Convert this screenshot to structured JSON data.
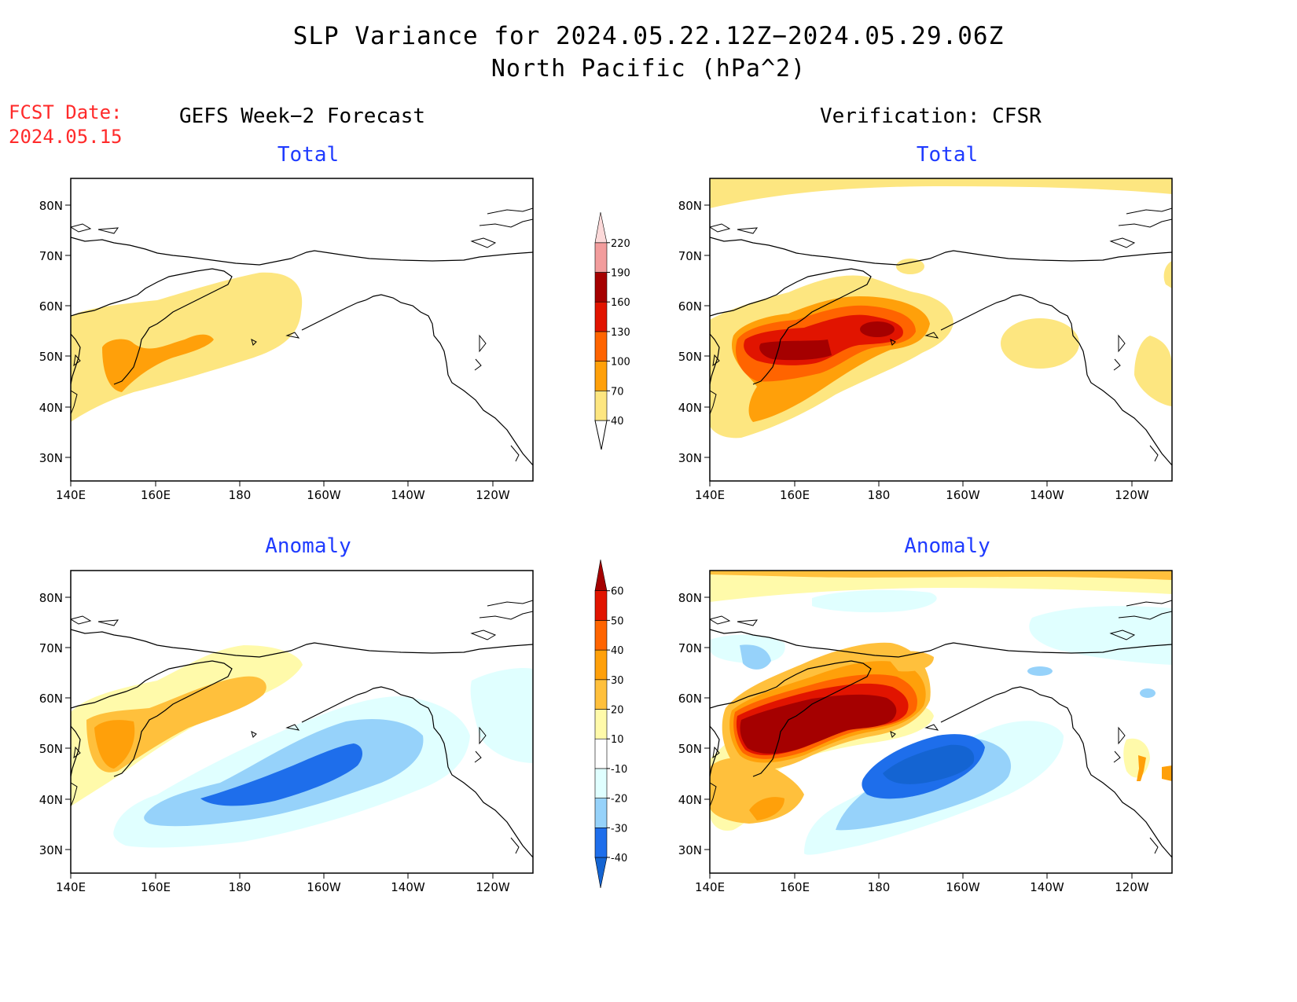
{
  "header": {
    "title_line1": "SLP Variance for 2024.05.22.12Z−2024.05.29.06Z",
    "title_line2": "North Pacific (hPa^2)"
  },
  "fcst_label": {
    "line1": "FCST Date:",
    "line2": "2024.05.15"
  },
  "columns": {
    "left": "GEFS Week−2 Forecast",
    "right": "Verification: CFSR"
  },
  "panels": {
    "gefs_total": {
      "title": "Total"
    },
    "cfsr_total": {
      "title": "Total"
    },
    "gefs_anomaly": {
      "title": "Anomaly"
    },
    "cfsr_anomaly": {
      "title": "Anomaly"
    }
  },
  "axes": {
    "lat_labels": [
      "80N",
      "70N",
      "60N",
      "50N",
      "40N",
      "30N"
    ],
    "lon_labels": [
      "140E",
      "160E",
      "180",
      "160W",
      "140W",
      "120W"
    ]
  },
  "colorbars": {
    "total": {
      "levels": [
        "40",
        "70",
        "100",
        "130",
        "160",
        "190",
        "220"
      ],
      "colors": [
        "#fde680",
        "#ffa00a",
        "#ff6400",
        "#e11400",
        "#a50000",
        "#f29c9c",
        "#fcd9d9"
      ]
    },
    "anomaly": {
      "levels": [
        "-40",
        "-30",
        "-20",
        "-10",
        "10",
        "20",
        "30",
        "40",
        "50",
        "60"
      ],
      "colors": [
        "#1464d2",
        "#1e6eeb",
        "#96d2fa",
        "#e0ffff",
        "#ffffff",
        "#fffaaa",
        "#ffc03c",
        "#ffa00a",
        "#ff6400",
        "#e11400",
        "#a50000"
      ]
    }
  }
}
